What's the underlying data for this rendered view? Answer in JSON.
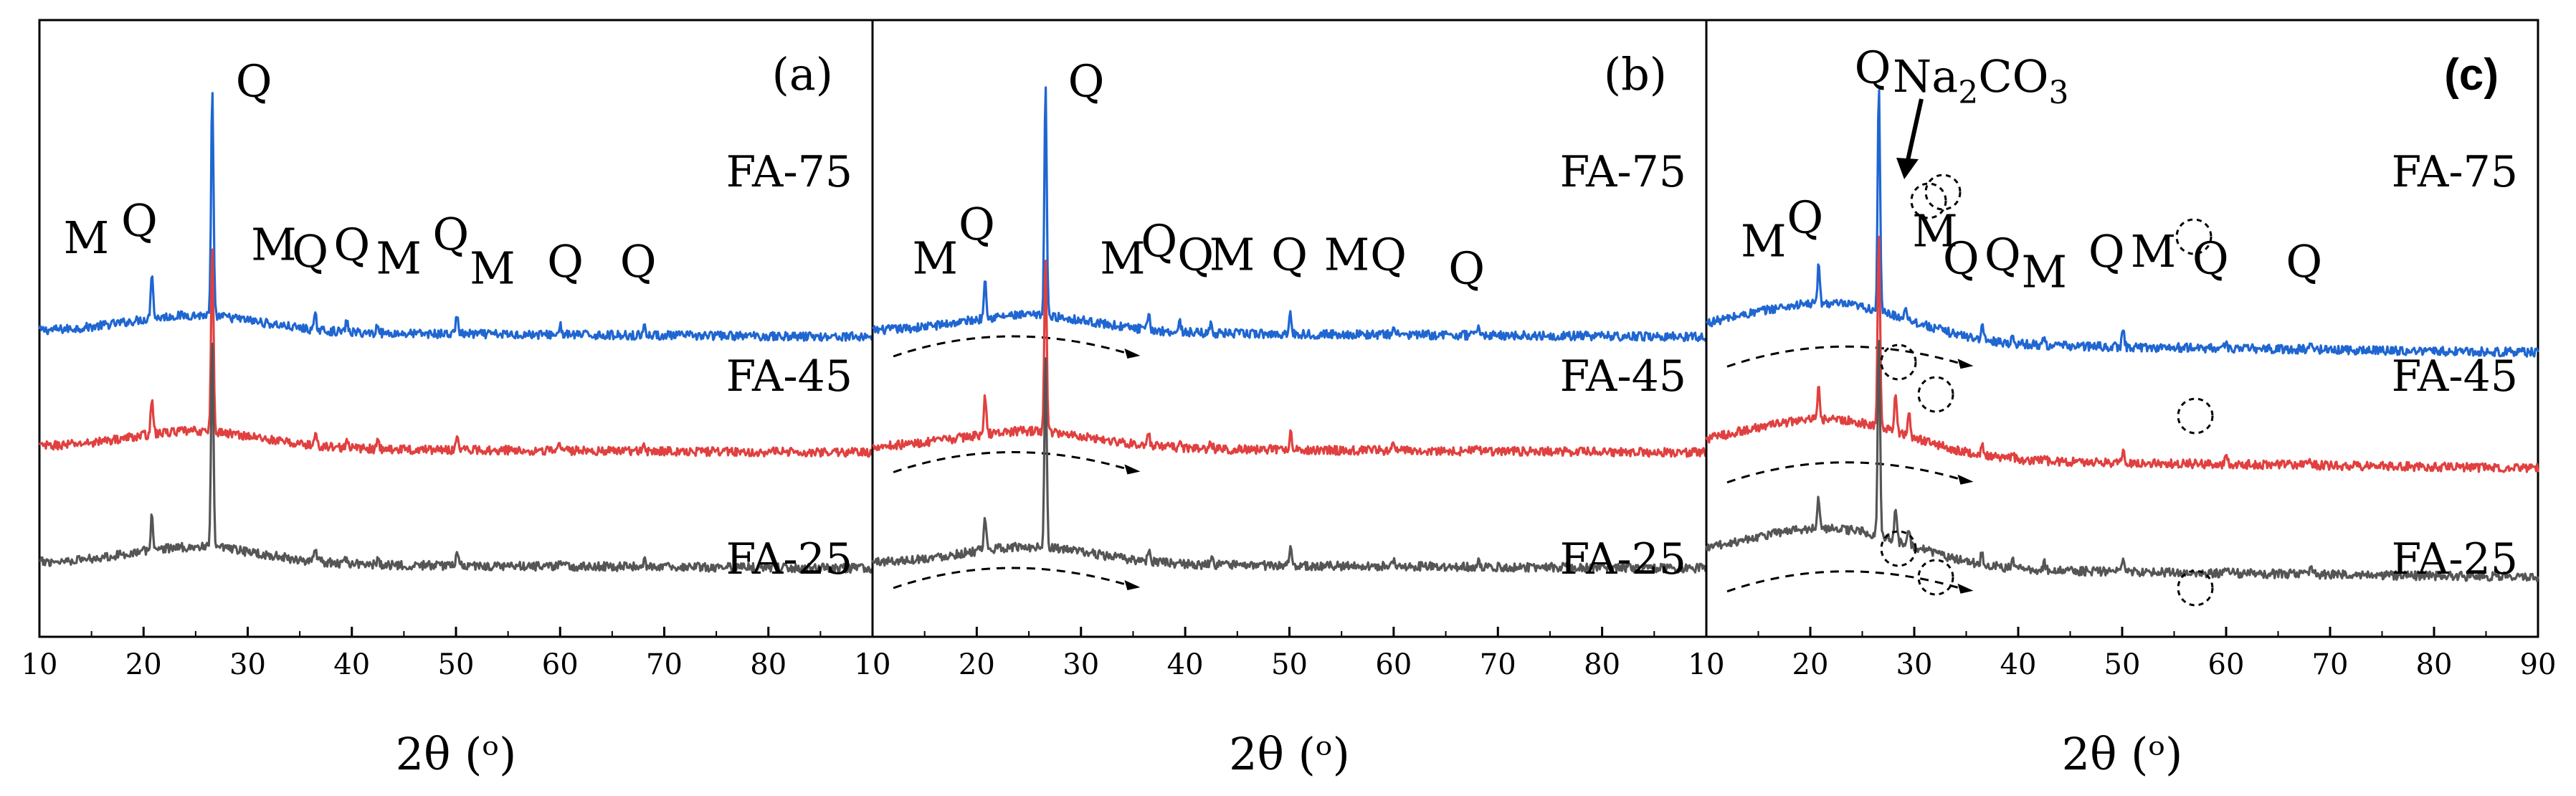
{
  "chart_data": [
    {
      "type": "line",
      "panel_label": "(a)",
      "xlabel": "2θ (ᵒ)",
      "xlim": [
        10,
        90
      ],
      "xticks": [
        "10",
        "20",
        "30",
        "40",
        "50",
        "60",
        "70",
        "80",
        "10"
      ],
      "series": [
        {
          "name": "FA-75",
          "color": "#1f66d1",
          "baseline": 88,
          "peaks": [
            [
              20.8,
              14
            ],
            [
              26.6,
              66
            ],
            [
              36.5,
              4
            ],
            [
              39.5,
              3
            ],
            [
              42.5,
              3
            ],
            [
              50.1,
              6
            ],
            [
              60.0,
              3
            ],
            [
              68.1,
              3
            ]
          ]
        },
        {
          "name": "FA-45",
          "color": "#e0403f",
          "baseline": 54,
          "peaks": [
            [
              20.8,
              11
            ],
            [
              26.6,
              55
            ],
            [
              36.5,
              3
            ],
            [
              39.5,
              2
            ],
            [
              42.5,
              2
            ],
            [
              50.1,
              5
            ],
            [
              60.0,
              2
            ],
            [
              68.1,
              2
            ]
          ]
        },
        {
          "name": "FA-25",
          "color": "#555555",
          "baseline": 20,
          "peaks": [
            [
              20.8,
              10
            ],
            [
              26.6,
              60
            ],
            [
              36.5,
              3
            ],
            [
              39.5,
              2
            ],
            [
              42.5,
              2
            ],
            [
              50.1,
              5
            ],
            [
              60.0,
              2
            ],
            [
              68.1,
              2
            ]
          ]
        }
      ],
      "annotations": [
        {
          "text": "M",
          "x": 14.5,
          "y": 111
        },
        {
          "text": "Q",
          "x": 19.6,
          "y": 116
        },
        {
          "text": "Q",
          "x": 30.6,
          "y": 157
        },
        {
          "text": "M",
          "x": 32.5,
          "y": 109
        },
        {
          "text": "Q",
          "x": 36.0,
          "y": 107
        },
        {
          "text": "Q",
          "x": 40.0,
          "y": 109
        },
        {
          "text": "M",
          "x": 44.5,
          "y": 105
        },
        {
          "text": "Q",
          "x": 49.5,
          "y": 112
        },
        {
          "text": "M",
          "x": 53.5,
          "y": 102
        },
        {
          "text": "Q",
          "x": 60.5,
          "y": 104
        },
        {
          "text": "Q",
          "x": 67.5,
          "y": 104
        }
      ]
    },
    {
      "type": "line",
      "panel_label": "(b)",
      "xlabel": "2θ (ᵒ)",
      "xlim": [
        10,
        90
      ],
      "xticks": [
        "10",
        "20",
        "30",
        "40",
        "50",
        "60",
        "70",
        "80",
        "10"
      ],
      "series": [
        {
          "name": "FA-75",
          "color": "#1f66d1",
          "baseline": 88,
          "peaks": [
            [
              20.8,
              13
            ],
            [
              26.6,
              68
            ],
            [
              36.5,
              4
            ],
            [
              39.5,
              3
            ],
            [
              42.5,
              3
            ],
            [
              50.1,
              6
            ],
            [
              60.0,
              3
            ],
            [
              68.1,
              3
            ]
          ]
        },
        {
          "name": "FA-45",
          "color": "#e0403f",
          "baseline": 54,
          "peaks": [
            [
              20.8,
              11
            ],
            [
              26.6,
              52
            ],
            [
              36.5,
              3
            ],
            [
              39.5,
              2
            ],
            [
              42.5,
              2
            ],
            [
              50.1,
              5
            ],
            [
              60.0,
              2
            ],
            [
              68.1,
              2
            ]
          ]
        },
        {
          "name": "FA-25",
          "color": "#555555",
          "baseline": 20,
          "peaks": [
            [
              20.8,
              9
            ],
            [
              26.6,
              56
            ],
            [
              36.5,
              3
            ],
            [
              39.5,
              2
            ],
            [
              42.5,
              2
            ],
            [
              50.1,
              5
            ],
            [
              60.0,
              2
            ],
            [
              68.1,
              2
            ]
          ]
        }
      ],
      "annotations": [
        {
          "text": "M",
          "x": 16.0,
          "y": 105
        },
        {
          "text": "Q",
          "x": 20.0,
          "y": 115
        },
        {
          "text": "Q",
          "x": 30.5,
          "y": 157
        },
        {
          "text": "M",
          "x": 34.0,
          "y": 105
        },
        {
          "text": "Q",
          "x": 37.5,
          "y": 110
        },
        {
          "text": "Q",
          "x": 41.0,
          "y": 106
        },
        {
          "text": "M",
          "x": 44.5,
          "y": 106
        },
        {
          "text": "Q",
          "x": 50.0,
          "y": 106
        },
        {
          "text": "M",
          "x": 55.5,
          "y": 106
        },
        {
          "text": "Q",
          "x": 59.5,
          "y": 106
        },
        {
          "text": "Q",
          "x": 67.0,
          "y": 102
        }
      ]
    },
    {
      "type": "line",
      "panel_label": "(c)",
      "xlabel": "2θ (ᵒ)",
      "xlim": [
        10,
        90
      ],
      "xticks": [
        "10",
        "20",
        "30",
        "40",
        "50",
        "60",
        "70",
        "80",
        "90"
      ],
      "series": [
        {
          "name": "FA-75",
          "color": "#1f66d1",
          "baseline": 85,
          "peaks": [
            [
              20.8,
              11
            ],
            [
              26.6,
              66
            ],
            [
              29.2,
              4
            ],
            [
              36.5,
              4
            ],
            [
              39.5,
              2
            ],
            [
              42.5,
              2
            ],
            [
              50.1,
              5
            ],
            [
              60.0,
              2
            ],
            [
              68.1,
              2
            ]
          ]
        },
        {
          "name": "FA-45",
          "color": "#e0403f",
          "baseline": 51,
          "peaks": [
            [
              20.8,
              9
            ],
            [
              26.6,
              58
            ],
            [
              28.2,
              12
            ],
            [
              29.5,
              6
            ],
            [
              36.5,
              3
            ],
            [
              39.5,
              2
            ],
            [
              42.5,
              2
            ],
            [
              50.1,
              4
            ],
            [
              60.0,
              2
            ],
            [
              68.1,
              2
            ]
          ]
        },
        {
          "name": "FA-25",
          "color": "#555555",
          "baseline": 19,
          "peaks": [
            [
              20.8,
              9
            ],
            [
              26.6,
              58
            ],
            [
              28.2,
              9
            ],
            [
              29.5,
              5
            ],
            [
              36.5,
              3
            ],
            [
              39.5,
              2
            ],
            [
              42.5,
              2
            ],
            [
              50.1,
              4
            ],
            [
              60.0,
              2
            ],
            [
              68.1,
              2
            ]
          ]
        }
      ],
      "annotations": [
        {
          "text": "M",
          "x": 15.5,
          "y": 110
        },
        {
          "text": "Q",
          "x": 19.5,
          "y": 117
        },
        {
          "text": "Q",
          "x": 26.0,
          "y": 161
        },
        {
          "text": "M",
          "x": 32.0,
          "y": 113
        },
        {
          "text": "Q",
          "x": 34.5,
          "y": 105
        },
        {
          "text": "Q",
          "x": 38.5,
          "y": 106
        },
        {
          "text": "M",
          "x": 42.5,
          "y": 101
        },
        {
          "text": "Q",
          "x": 48.5,
          "y": 107
        },
        {
          "text": "M",
          "x": 53.0,
          "y": 107
        },
        {
          "text": "Q",
          "x": 58.5,
          "y": 105
        },
        {
          "text": "Q",
          "x": 67.5,
          "y": 104
        }
      ],
      "compound_label": {
        "text": "Na",
        "sub": "2",
        "text2": "CO",
        "sub2": "3"
      }
    }
  ]
}
